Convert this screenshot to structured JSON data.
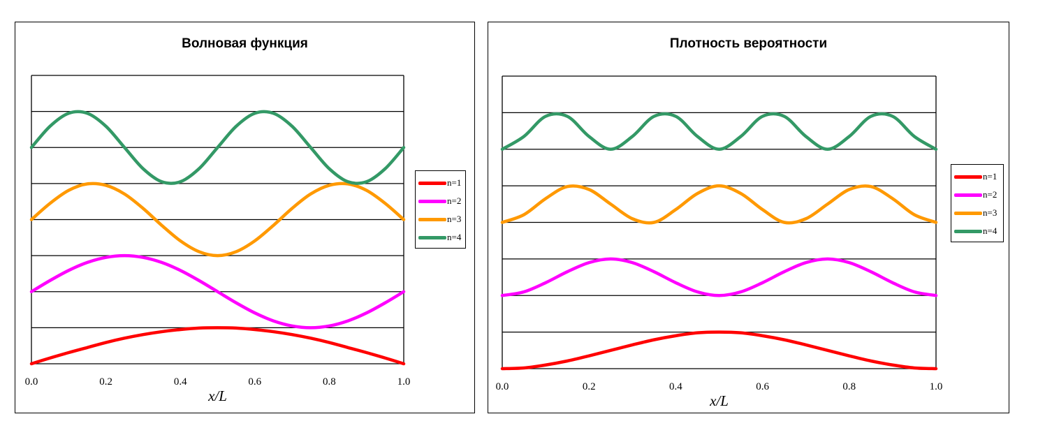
{
  "chart_data": [
    {
      "type": "line",
      "title": "Волновая функция",
      "xlabel": "x/L",
      "ylabel": "",
      "xlim": [
        0,
        1
      ],
      "ylim": [
        0,
        8
      ],
      "x_ticks": [
        "0.0",
        "0.2",
        "0.4",
        "0.6",
        "0.8",
        "1.0"
      ],
      "x_tick_values": [
        0,
        0.2,
        0.4,
        0.6,
        0.8,
        1.0
      ],
      "gridlines_y": [
        1,
        2,
        3,
        4,
        5,
        6,
        7,
        8
      ],
      "grid": true,
      "legend_position": "right",
      "x": [
        0.0,
        0.05,
        0.1,
        0.15,
        0.2,
        0.25,
        0.3,
        0.35,
        0.4,
        0.45,
        0.5,
        0.55,
        0.6,
        0.65,
        0.7,
        0.75,
        0.8,
        0.85,
        0.9,
        0.95,
        1.0
      ],
      "series": [
        {
          "name": "n=1",
          "color": "#ff0000",
          "values": [
            0.0,
            0.16,
            0.31,
            0.45,
            0.59,
            0.71,
            0.81,
            0.89,
            0.95,
            0.99,
            1.0,
            0.99,
            0.95,
            0.89,
            0.81,
            0.71,
            0.59,
            0.45,
            0.31,
            0.16,
            0.0
          ]
        },
        {
          "name": "n=2",
          "color": "#ff00ff",
          "values": [
            2.0,
            2.31,
            2.59,
            2.81,
            2.95,
            3.0,
            2.95,
            2.81,
            2.59,
            2.31,
            2.0,
            1.69,
            1.41,
            1.19,
            1.05,
            1.0,
            1.05,
            1.19,
            1.41,
            1.69,
            2.0
          ]
        },
        {
          "name": "n=3",
          "color": "#ff9900",
          "values": [
            4.0,
            4.45,
            4.81,
            4.99,
            4.95,
            4.71,
            4.31,
            3.84,
            3.41,
            3.11,
            3.0,
            3.11,
            3.41,
            3.84,
            4.31,
            4.71,
            4.95,
            4.99,
            4.81,
            4.45,
            4.0
          ]
        },
        {
          "name": "n=4",
          "color": "#339966",
          "values": [
            6.0,
            6.59,
            6.95,
            6.95,
            6.59,
            6.0,
            5.41,
            5.05,
            5.05,
            5.41,
            6.0,
            6.59,
            6.95,
            6.95,
            6.59,
            6.0,
            5.41,
            5.05,
            5.05,
            5.41,
            6.0
          ]
        }
      ]
    },
    {
      "type": "line",
      "title": "Плотность вероятности",
      "xlabel": "x/L",
      "ylabel": "",
      "xlim": [
        0,
        1
      ],
      "ylim": [
        0,
        8
      ],
      "x_ticks": [
        "0.0",
        "0.2",
        "0.4",
        "0.6",
        "0.8",
        "1.0"
      ],
      "x_tick_values": [
        0,
        0.2,
        0.4,
        0.6,
        0.8,
        1.0
      ],
      "gridlines_y": [
        1,
        2,
        3,
        4,
        5,
        6,
        7,
        8
      ],
      "grid": true,
      "legend_position": "right",
      "x": [
        0.0,
        0.05,
        0.1,
        0.15,
        0.2,
        0.25,
        0.3,
        0.35,
        0.4,
        0.45,
        0.5,
        0.55,
        0.6,
        0.65,
        0.7,
        0.75,
        0.8,
        0.85,
        0.9,
        0.95,
        1.0
      ],
      "series": [
        {
          "name": "n=1",
          "color": "#ff0000",
          "values": [
            0.0,
            0.02,
            0.1,
            0.21,
            0.35,
            0.5,
            0.65,
            0.79,
            0.9,
            0.98,
            1.0,
            0.98,
            0.9,
            0.79,
            0.65,
            0.5,
            0.35,
            0.21,
            0.1,
            0.02,
            0.0
          ]
        },
        {
          "name": "n=2",
          "color": "#ff00ff",
          "values": [
            2.0,
            2.1,
            2.35,
            2.65,
            2.9,
            3.0,
            2.9,
            2.65,
            2.35,
            2.1,
            2.0,
            2.1,
            2.35,
            2.65,
            2.9,
            3.0,
            2.9,
            2.65,
            2.35,
            2.1,
            2.0
          ]
        },
        {
          "name": "n=3",
          "color": "#ff9900",
          "values": [
            4.0,
            4.21,
            4.65,
            4.98,
            4.9,
            4.5,
            4.1,
            4.0,
            4.35,
            4.79,
            5.0,
            4.79,
            4.35,
            4.0,
            4.1,
            4.5,
            4.9,
            4.98,
            4.65,
            4.21,
            4.0
          ]
        },
        {
          "name": "n=4",
          "color": "#339966",
          "values": [
            6.0,
            6.35,
            6.9,
            6.9,
            6.35,
            6.0,
            6.35,
            6.9,
            6.9,
            6.35,
            6.0,
            6.35,
            6.9,
            6.9,
            6.35,
            6.0,
            6.35,
            6.9,
            6.9,
            6.35,
            6.0
          ]
        }
      ]
    }
  ]
}
